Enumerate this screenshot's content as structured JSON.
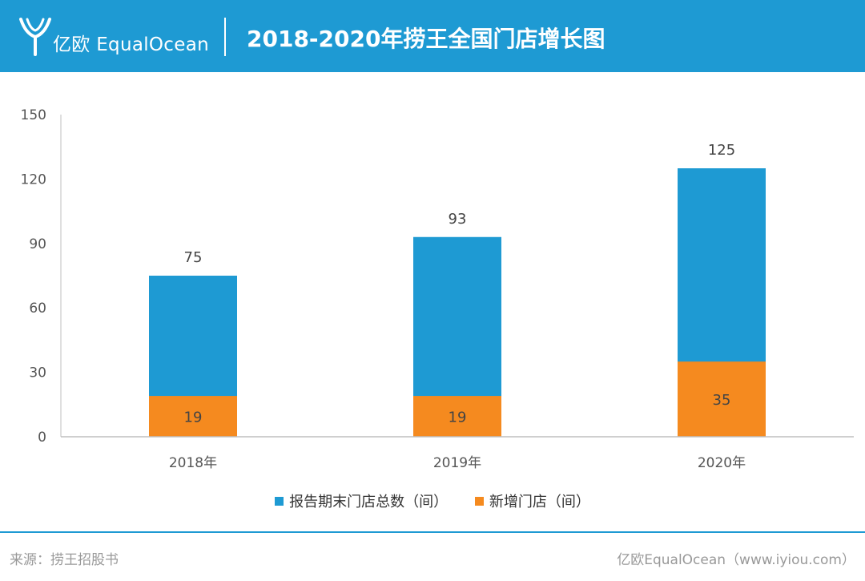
{
  "header": {
    "logo_text": "亿欧 EqualOcean",
    "title": "2018-2020年捞王全国门店增长图"
  },
  "colors": {
    "header_bg": "#1e9ad3",
    "series_total": "#1e9ad3",
    "series_new": "#f58a1f"
  },
  "chart_data": {
    "type": "bar",
    "stacked": true,
    "title": "2018-2020年捞王全国门店增长图",
    "categories": [
      "2018年",
      "2019年",
      "2020年"
    ],
    "series": [
      {
        "name": "报告期末门店总数（间）",
        "values": [
          75,
          93,
          125
        ]
      },
      {
        "name": "新增门店（间）",
        "values": [
          19,
          19,
          35
        ]
      }
    ],
    "ylim": [
      0,
      150
    ],
    "yticks": [
      0,
      30,
      60,
      90,
      120,
      150
    ],
    "grid": false,
    "legend": "bottom"
  },
  "footer": {
    "source": "来源：捞王招股书",
    "credit": "亿欧EqualOcean（www.iyiou.com）"
  }
}
